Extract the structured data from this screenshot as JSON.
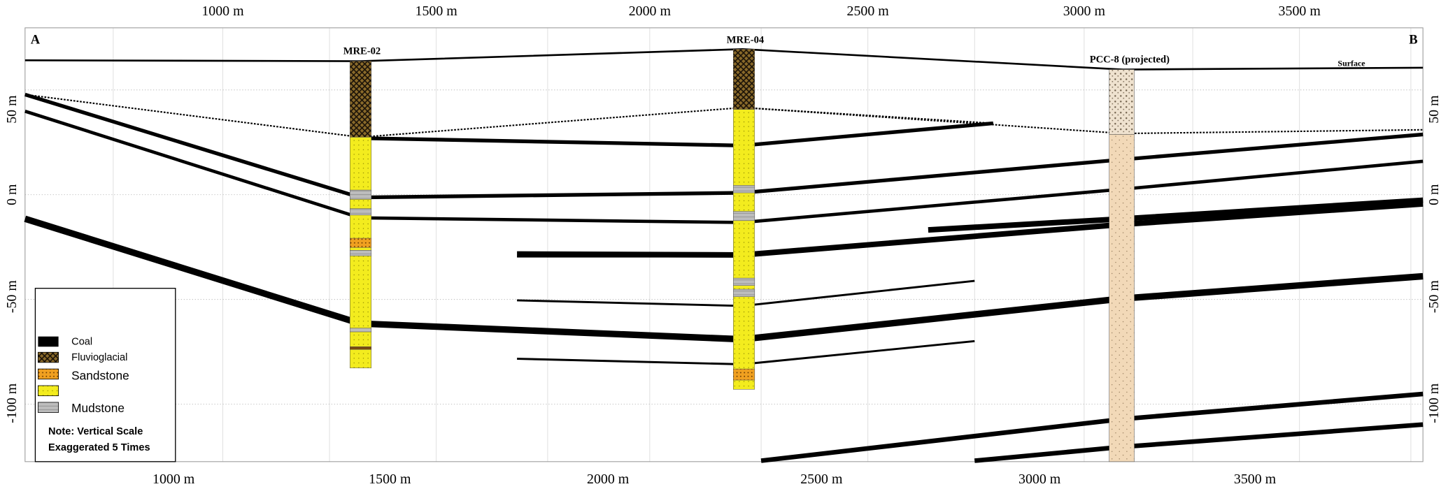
{
  "section": {
    "end_a": "A",
    "end_b": "B",
    "surface": "Surface",
    "wells": [
      "MRE-02",
      "MRE-04",
      "PCC-8 (projected)"
    ]
  },
  "axes": {
    "x_top": [
      "1000 m",
      "1500 m",
      "2000 m",
      "2500 m",
      "3000 m",
      "3500 m"
    ],
    "x_bottom": [
      "1000 m",
      "1500 m",
      "2000 m",
      "2500 m",
      "3000 m",
      "3500 m"
    ],
    "y_left": [
      "50 m",
      "0 m",
      "-50 m",
      "-100 m"
    ],
    "y_right": [
      "50 m",
      "0 m",
      "-50 m",
      "-100 m"
    ]
  },
  "legend": {
    "items": [
      "Coal",
      "Fluvioglacial",
      "Sandstone",
      "Mudstone"
    ],
    "note": [
      "Note: Vertical Scale",
      "Exaggerated 5 Times"
    ]
  }
}
